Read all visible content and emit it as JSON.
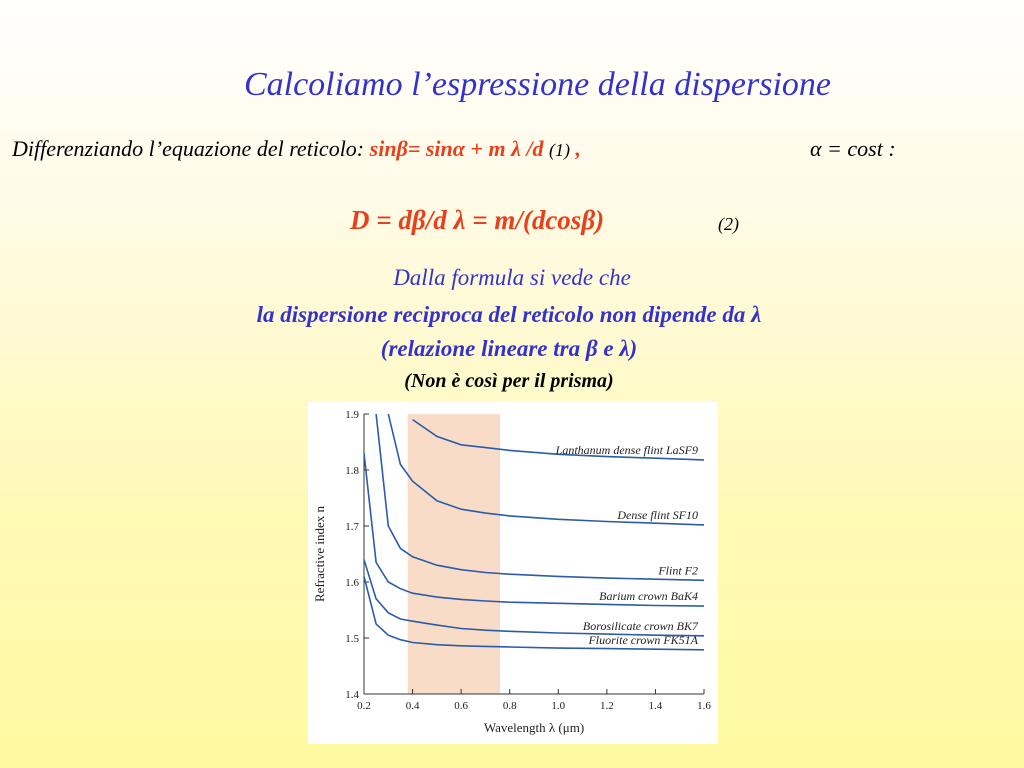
{
  "slide": {
    "title": "Calcoliamo l’espressione  della dispersione",
    "differentiation": {
      "intro": "Differenziando l’equazione del reticolo: ",
      "equation": "sinβ= sinα + m  λ /d",
      "number": "(1)",
      "comma": " ,",
      "condition": "α = cost :"
    },
    "dispersion_eq": {
      "formula": "D = dβ/d  λ = m/(dcosβ)",
      "number": "(2)"
    },
    "line1": "Dalla formula si vede che",
    "line2": "la dispersione reciproca del reticolo non dipende da λ",
    "line3": "(relazione lineare tra  β e  λ)",
    "line4": "(Non è così per il prisma)"
  },
  "chart_data": {
    "type": "line",
    "xlabel": "Wavelength λ (μm)",
    "ylabel": "Refractive index n",
    "xlim": [
      0.2,
      1.6
    ],
    "ylim": [
      1.4,
      1.9
    ],
    "x_ticks": [
      "0.2",
      "0.4",
      "0.6",
      "0.8",
      "1.0",
      "1.2",
      "1.4",
      "1.6"
    ],
    "y_ticks": [
      "1.4",
      "1.5",
      "1.6",
      "1.7",
      "1.8",
      "1.9"
    ],
    "visible_band": [
      0.38,
      0.76
    ],
    "band_color": "#f8dcc8",
    "line_color": "#2b5ca8",
    "x": [
      0.2,
      0.25,
      0.3,
      0.35,
      0.4,
      0.5,
      0.6,
      0.7,
      0.8,
      1.0,
      1.2,
      1.4,
      1.6
    ],
    "series": [
      {
        "name": "Lanthanum dense flint LaSF9",
        "values": [
          null,
          null,
          null,
          null,
          1.89,
          1.86,
          1.845,
          1.84,
          1.835,
          1.828,
          1.824,
          1.821,
          1.818
        ]
      },
      {
        "name": "Dense flint SF10",
        "values": [
          null,
          null,
          1.9,
          1.81,
          1.78,
          1.745,
          1.73,
          1.723,
          1.718,
          1.712,
          1.708,
          1.705,
          1.702
        ]
      },
      {
        "name": "Flint F2",
        "values": [
          null,
          1.9,
          1.7,
          1.66,
          1.645,
          1.63,
          1.622,
          1.617,
          1.614,
          1.61,
          1.607,
          1.605,
          1.603
        ]
      },
      {
        "name": "Barium crown BaK4",
        "values": [
          1.83,
          1.635,
          1.6,
          1.588,
          1.58,
          1.573,
          1.569,
          1.566,
          1.564,
          1.562,
          1.56,
          1.558,
          1.557
        ]
      },
      {
        "name": "Borosilicate crown BK7",
        "values": [
          1.64,
          1.57,
          1.545,
          1.534,
          1.53,
          1.523,
          1.517,
          1.514,
          1.512,
          1.509,
          1.507,
          1.505,
          1.504
        ]
      },
      {
        "name": "Fluorite crown FK51A",
        "values": [
          1.61,
          1.525,
          1.505,
          1.497,
          1.492,
          1.488,
          1.486,
          1.485,
          1.484,
          1.482,
          1.481,
          1.48,
          1.479
        ]
      }
    ]
  }
}
